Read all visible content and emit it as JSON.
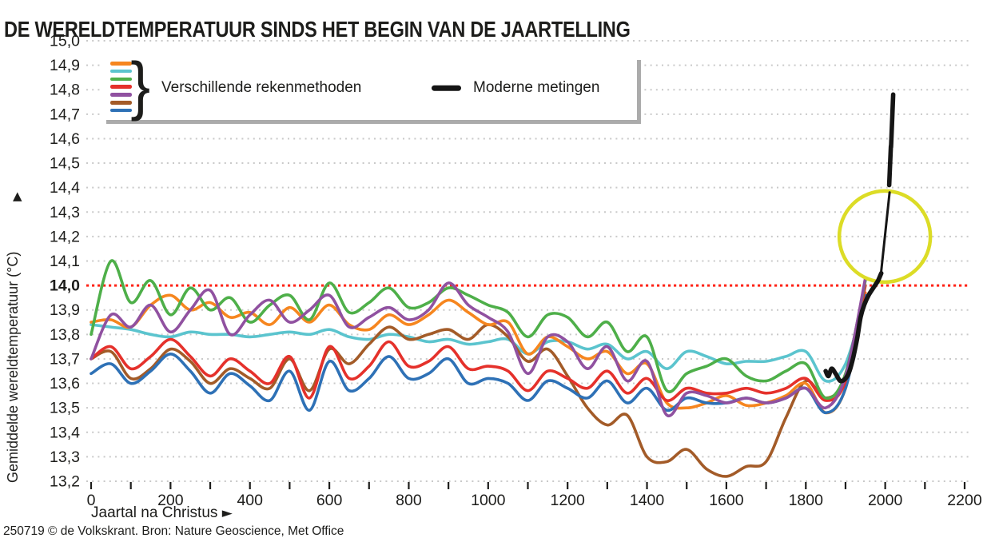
{
  "title": "DE WERELDTEMPERATUUR SINDS HET BEGIN VAN DE JAARTELLING",
  "footer": "250719 © de Volkskrant. Bron: Nature Geoscience, Met Office",
  "legend": {
    "brace": "}",
    "methods_label": "Verschillende rekenmethoden",
    "modern_label": "Moderne metingen",
    "method_colors": [
      "#F6861F",
      "#5BC4CE",
      "#4EAF49",
      "#E5312B",
      "#9051A0",
      "#A35B28",
      "#2E71B6"
    ],
    "modern_color": "#151515"
  },
  "axes": {
    "y_label": "Gemiddelde wereldtemperatuur  (°C)",
    "y_arrow": "▲",
    "x_label": "Jaartal na Christus",
    "x_arrow": "►",
    "y_ticks": [
      "15,0",
      "14,9",
      "14,8",
      "14,7",
      "14,6",
      "14,5",
      "14,4",
      "14,3",
      "14,2",
      "14,1",
      "14,0",
      "13,9",
      "13,8",
      "13,7",
      "13,6",
      "13,5",
      "13,4",
      "13,3",
      "13,2"
    ],
    "y_tick_values": [
      15.0,
      14.9,
      14.8,
      14.7,
      14.6,
      14.5,
      14.4,
      14.3,
      14.2,
      14.1,
      14.0,
      13.9,
      13.8,
      13.7,
      13.6,
      13.5,
      13.4,
      13.3,
      13.2
    ],
    "y_bold_tick": "14,0",
    "x_tick_labels": [
      "0",
      "200",
      "400",
      "600",
      "800",
      "1000",
      "1200",
      "1400",
      "1600",
      "1800",
      "2000",
      "2200"
    ],
    "x_minor_step": 100
  },
  "chart_data": {
    "type": "line",
    "title": "DE WERELDTEMPERATUUR SINDS HET BEGIN VAN DE JAARTELLING",
    "xlabel": "Jaartal na Christus",
    "ylabel": "Gemiddelde wereldtemperatuur (°C)",
    "x_range": [
      0,
      2200
    ],
    "y_range": [
      13.2,
      15.0
    ],
    "grid": "dotted horizontal lines every 0.1 °C",
    "legend_position": "top-left box",
    "reference_line": {
      "value": 14.0,
      "color": "#FF2417",
      "style": "dotted"
    },
    "years": [
      0,
      50,
      100,
      150,
      200,
      250,
      300,
      350,
      400,
      450,
      500,
      550,
      600,
      650,
      700,
      750,
      800,
      850,
      900,
      950,
      1000,
      1050,
      1100,
      1150,
      1200,
      1250,
      1300,
      1350,
      1400,
      1450,
      1500,
      1550,
      1600,
      1650,
      1700,
      1750,
      1800,
      1850,
      1900,
      1950
    ],
    "series": [
      {
        "id": "oranje",
        "name": "rekenmethode (oranje)",
        "color": "#F6861F",
        "values": [
          13.85,
          13.86,
          13.83,
          13.92,
          13.96,
          13.9,
          13.93,
          13.87,
          13.89,
          13.84,
          13.91,
          13.85,
          13.92,
          13.84,
          13.82,
          13.88,
          13.84,
          13.88,
          13.94,
          13.89,
          13.84,
          13.85,
          13.72,
          13.79,
          13.75,
          13.7,
          13.73,
          13.64,
          13.68,
          13.52,
          13.5,
          13.52,
          13.55,
          13.51,
          13.52,
          13.55,
          13.6,
          13.48,
          13.58,
          13.97
        ]
      },
      {
        "id": "lichtblauw",
        "name": "rekenmethode (lichtblauw)",
        "color": "#5BC4CE",
        "values": [
          13.84,
          13.83,
          13.82,
          13.8,
          13.79,
          13.81,
          13.8,
          13.8,
          13.79,
          13.8,
          13.81,
          13.8,
          13.82,
          13.79,
          13.78,
          13.8,
          13.79,
          13.77,
          13.78,
          13.76,
          13.77,
          13.78,
          13.72,
          13.77,
          13.77,
          13.74,
          13.76,
          13.7,
          13.73,
          13.66,
          13.73,
          13.71,
          13.68,
          13.69,
          13.69,
          13.71,
          13.73,
          13.61,
          13.68,
          13.95
        ]
      },
      {
        "id": "groen",
        "name": "rekenmethode (groen)",
        "color": "#4EAF49",
        "values": [
          13.8,
          14.1,
          13.93,
          14.02,
          13.88,
          13.99,
          13.9,
          13.95,
          13.85,
          13.92,
          13.96,
          13.86,
          14.01,
          13.89,
          13.93,
          13.99,
          13.91,
          13.93,
          13.99,
          13.96,
          13.92,
          13.89,
          13.79,
          13.88,
          13.87,
          13.79,
          13.85,
          13.73,
          13.79,
          13.57,
          13.64,
          13.67,
          13.7,
          13.63,
          13.61,
          13.65,
          13.68,
          13.54,
          13.64,
          14.02
        ]
      },
      {
        "id": "rood",
        "name": "rekenmethode (rood)",
        "color": "#E5312B",
        "values": [
          13.7,
          13.75,
          13.66,
          13.71,
          13.78,
          13.71,
          13.63,
          13.7,
          13.65,
          13.6,
          13.71,
          13.54,
          13.75,
          13.62,
          13.67,
          13.77,
          13.67,
          13.69,
          13.75,
          13.66,
          13.67,
          13.65,
          13.57,
          13.65,
          13.62,
          13.58,
          13.65,
          13.56,
          13.62,
          13.53,
          13.58,
          13.56,
          13.56,
          13.58,
          13.56,
          13.58,
          13.62,
          13.53,
          13.61,
          14.0
        ]
      },
      {
        "id": "paars",
        "name": "rekenmethode (paars)",
        "color": "#9051A0",
        "values": [
          13.7,
          13.88,
          13.83,
          13.92,
          13.81,
          13.9,
          13.98,
          13.8,
          13.88,
          13.94,
          13.85,
          13.9,
          13.96,
          13.83,
          13.87,
          13.91,
          13.86,
          13.9,
          14.01,
          13.92,
          13.87,
          13.81,
          13.64,
          13.79,
          13.77,
          13.66,
          13.75,
          13.61,
          13.69,
          13.47,
          13.56,
          13.55,
          13.52,
          13.54,
          13.52,
          13.54,
          13.58,
          13.5,
          13.63,
          14.03
        ]
      },
      {
        "id": "bruin",
        "name": "rekenmethode (bruin)",
        "color": "#A35B28",
        "values": [
          13.7,
          13.73,
          13.62,
          13.66,
          13.74,
          13.69,
          13.6,
          13.66,
          13.62,
          13.58,
          13.7,
          13.57,
          13.74,
          13.68,
          13.76,
          13.83,
          13.78,
          13.8,
          13.82,
          13.78,
          13.84,
          13.79,
          13.69,
          13.74,
          13.63,
          13.5,
          13.43,
          13.47,
          13.3,
          13.28,
          13.33,
          13.25,
          13.22,
          13.26,
          13.28,
          13.46,
          13.61,
          13.54,
          13.62,
          13.96
        ]
      },
      {
        "id": "blauw",
        "name": "rekenmethode (blauw)",
        "color": "#2E71B6",
        "values": [
          13.64,
          13.68,
          13.6,
          13.65,
          13.72,
          13.65,
          13.56,
          13.64,
          13.59,
          13.53,
          13.65,
          13.49,
          13.69,
          13.57,
          13.62,
          13.71,
          13.62,
          13.64,
          13.7,
          13.6,
          13.62,
          13.6,
          13.53,
          13.61,
          13.58,
          13.54,
          13.61,
          13.52,
          13.58,
          13.49,
          13.54,
          13.52,
          13.52,
          13.54,
          13.52,
          13.54,
          13.58,
          13.48,
          13.58,
          13.96
        ]
      }
    ],
    "modern_color": "#151515",
    "modern_segments": [
      {
        "style": "thick",
        "width": 5.6,
        "points": [
          [
            1850,
            13.65
          ],
          [
            1857,
            13.63
          ],
          [
            1865,
            13.66
          ],
          [
            1875,
            13.64
          ],
          [
            1887,
            13.61
          ],
          [
            1900,
            13.62
          ],
          [
            1910,
            13.65
          ],
          [
            1920,
            13.71
          ],
          [
            1930,
            13.79
          ],
          [
            1938,
            13.87
          ],
          [
            1947,
            13.92
          ],
          [
            1958,
            13.96
          ],
          [
            1970,
            13.99
          ],
          [
            1982,
            14.02
          ],
          [
            1990,
            14.05
          ]
        ]
      },
      {
        "style": "thin",
        "width": 3,
        "points": [
          [
            1990,
            14.06
          ],
          [
            2011,
            14.38
          ]
        ]
      },
      {
        "style": "thick",
        "width": 5.6,
        "points": [
          [
            2010,
            14.41
          ],
          [
            2014,
            14.56
          ],
          [
            2015,
            14.58
          ],
          [
            2020,
            14.78
          ]
        ]
      }
    ],
    "highlight_circle": {
      "year": 1999,
      "temp": 14.2,
      "color": "#DCDC26"
    }
  }
}
